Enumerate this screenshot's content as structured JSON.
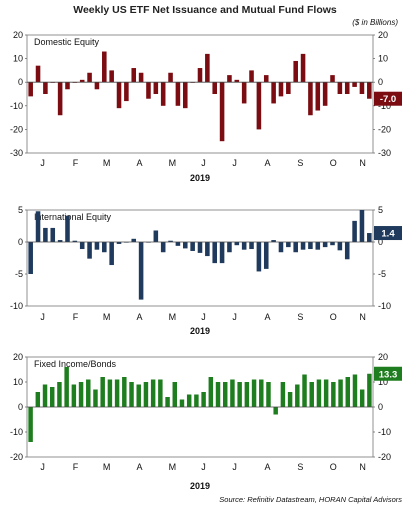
{
  "title": "Weekly US ETF Net Issuance and Mutual Fund Flows",
  "units": "($ in Billions)",
  "source": "Source: Refinitiv Datastream, HORAN Capital Advisors",
  "chart_data": [
    {
      "type": "bar",
      "title": "Domestic Equity",
      "color": "#7b0c12",
      "ylim": [
        -30,
        20
      ],
      "yticks": [
        -30,
        -20,
        -10,
        0,
        10,
        20
      ],
      "month_labels": [
        "J",
        "F",
        "M",
        "A",
        "M",
        "J",
        "J",
        "A",
        "S",
        "O",
        "N"
      ],
      "xlabel": "2019",
      "last_value_label": "-7.0",
      "values": [
        -6,
        7,
        -5,
        0,
        -14,
        -3,
        0,
        1,
        4,
        -3,
        13,
        5,
        -11,
        -8,
        6,
        4,
        -7,
        -5,
        -10,
        4,
        -10,
        -11,
        0,
        6,
        12,
        -5,
        -25,
        3,
        1,
        -9,
        5,
        -20,
        3,
        -9,
        -6,
        -5,
        9,
        12,
        -14,
        -12,
        -10,
        3,
        -5,
        -5,
        -2,
        -5,
        -7
      ]
    },
    {
      "type": "bar",
      "title": "International Equity",
      "color": "#1f3a5c",
      "ylim": [
        -10,
        5
      ],
      "yticks": [
        -10,
        -5,
        0,
        5
      ],
      "month_labels": [
        "J",
        "F",
        "M",
        "A",
        "M",
        "J",
        "J",
        "A",
        "S",
        "O",
        "N"
      ],
      "xlabel": "2019",
      "last_value_label": "1.4",
      "values": [
        -5,
        4.8,
        2.2,
        2.2,
        0.3,
        4.1,
        0.2,
        -1.1,
        -2.6,
        -1.2,
        -1.6,
        -3.6,
        -0.3,
        0,
        0.5,
        -9,
        0,
        1.8,
        -1.6,
        0.2,
        -0.6,
        -1,
        -1.4,
        -1.7,
        -2.2,
        -3.3,
        -3.3,
        -1.6,
        -0.5,
        -1.2,
        -1.1,
        -4.6,
        -4.2,
        0.3,
        -1.6,
        -0.8,
        -1.6,
        -1.2,
        -1.1,
        -1.2,
        -0.8,
        -0.5,
        -1.3,
        -2.7,
        3.3,
        5,
        1.4
      ]
    },
    {
      "type": "bar",
      "title": "Fixed Income/Bonds",
      "color": "#1e7d1e",
      "ylim": [
        -20,
        20
      ],
      "yticks": [
        -20,
        -10,
        0,
        10,
        20
      ],
      "month_labels": [
        "J",
        "F",
        "M",
        "A",
        "M",
        "J",
        "J",
        "A",
        "S",
        "O",
        "N"
      ],
      "xlabel": "2019",
      "last_value_label": "13.3",
      "values": [
        -14,
        6,
        9,
        8,
        10,
        16,
        9,
        10,
        11,
        7,
        12,
        11,
        11,
        12,
        10,
        9,
        10,
        11,
        11,
        4,
        10,
        3,
        5,
        5,
        6,
        12,
        10,
        10,
        11,
        10,
        10,
        11,
        11,
        10,
        -3,
        10,
        6,
        9,
        13,
        10,
        11,
        11,
        10,
        11,
        12,
        13,
        7,
        13.3
      ]
    }
  ]
}
